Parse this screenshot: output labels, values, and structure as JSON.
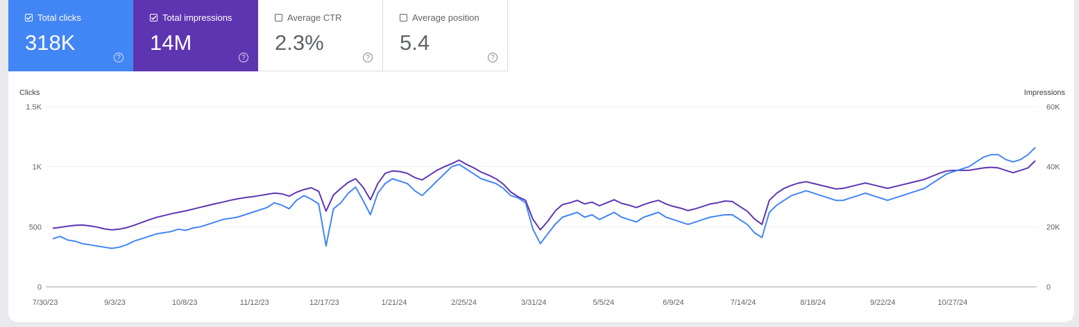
{
  "metrics": [
    {
      "label": "Total clicks",
      "value": "318K",
      "checked": true,
      "color": "#4285f4"
    },
    {
      "label": "Total impressions",
      "value": "14M",
      "checked": true,
      "color": "#5e35b1"
    },
    {
      "label": "Average CTR",
      "value": "2.3%",
      "checked": false
    },
    {
      "label": "Average position",
      "value": "5.4",
      "checked": false
    }
  ],
  "chart_data": {
    "type": "line",
    "left_axis_label": "Clicks",
    "right_axis_label": "Impressions",
    "left_ticks": [
      "0",
      "500",
      "1K",
      "1.5K"
    ],
    "left_ylim": [
      0,
      1500
    ],
    "right_ticks": [
      "0",
      "20K",
      "40K",
      "60K"
    ],
    "right_ylim": [
      0,
      60000
    ],
    "x_ticks": [
      "7/30/23",
      "9/3/23",
      "10/8/23",
      "11/12/23",
      "12/17/23",
      "1/21/24",
      "2/25/24",
      "3/31/24",
      "5/5/24",
      "6/9/24",
      "7/14/24",
      "8/18/24",
      "9/22/24",
      "10/27/24"
    ],
    "grid": true,
    "series": [
      {
        "name": "Clicks",
        "axis": "left",
        "color": "#4285f4",
        "values": [
          400,
          420,
          390,
          380,
          360,
          350,
          340,
          330,
          320,
          330,
          350,
          380,
          400,
          420,
          440,
          450,
          460,
          480,
          470,
          490,
          500,
          520,
          540,
          560,
          570,
          580,
          600,
          620,
          640,
          660,
          700,
          680,
          650,
          720,
          760,
          730,
          690,
          340,
          650,
          700,
          780,
          830,
          720,
          600,
          780,
          860,
          900,
          880,
          860,
          800,
          760,
          820,
          880,
          940,
          1000,
          1020,
          980,
          940,
          900,
          880,
          860,
          820,
          760,
          740,
          700,
          480,
          360,
          440,
          520,
          580,
          600,
          620,
          580,
          600,
          560,
          590,
          620,
          580,
          560,
          540,
          580,
          600,
          620,
          580,
          560,
          540,
          520,
          540,
          560,
          580,
          590,
          600,
          600,
          560,
          520,
          450,
          410,
          620,
          680,
          720,
          760,
          780,
          800,
          780,
          760,
          740,
          720,
          720,
          740,
          760,
          780,
          760,
          740,
          720,
          740,
          760,
          780,
          800,
          820,
          860,
          900,
          940,
          960,
          980,
          1000,
          1040,
          1080,
          1100,
          1100,
          1060,
          1040,
          1060,
          1100,
          1160
        ]
      },
      {
        "name": "Impressions",
        "axis": "right",
        "color": "#5e35b1",
        "values": [
          19500,
          19800,
          20200,
          20500,
          20600,
          20300,
          19900,
          19300,
          19000,
          19200,
          19700,
          20500,
          21400,
          22300,
          23100,
          23700,
          24300,
          24800,
          25300,
          25900,
          26500,
          27100,
          27700,
          28200,
          28800,
          29300,
          29700,
          30000,
          30400,
          30800,
          31200,
          31000,
          30200,
          31500,
          32400,
          33000,
          31800,
          25200,
          30600,
          32800,
          34800,
          36000,
          33200,
          29000,
          34400,
          37800,
          38600,
          38400,
          37800,
          36400,
          35600,
          37200,
          38800,
          40000,
          41000,
          42200,
          40800,
          39600,
          38200,
          37200,
          36000,
          34200,
          31600,
          30000,
          28800,
          22500,
          19000,
          21800,
          25200,
          27400,
          28000,
          28800,
          27600,
          28200,
          27000,
          28000,
          29000,
          27800,
          27200,
          26400,
          27400,
          28200,
          28800,
          27600,
          26800,
          26200,
          25400,
          26000,
          26800,
          27600,
          28000,
          28600,
          28400,
          26800,
          25200,
          22600,
          20800,
          28800,
          31200,
          32800,
          33800,
          34600,
          35000,
          34400,
          33800,
          33200,
          32600,
          32800,
          33400,
          34000,
          34600,
          34000,
          33400,
          32800,
          33400,
          34000,
          34600,
          35200,
          35800,
          36800,
          37800,
          38600,
          38800,
          38800,
          38800,
          39200,
          39600,
          39800,
          39600,
          38800,
          38000,
          38800,
          39600,
          42000
        ]
      }
    ]
  }
}
